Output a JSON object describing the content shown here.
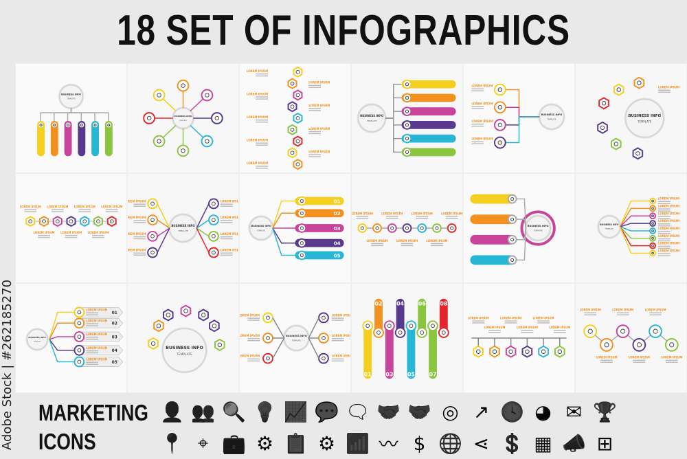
{
  "title": "18 SET OF INFOGRAPHICS",
  "watermark": "Adobe Stock | #262185270",
  "marketing": {
    "line1": "MARKETING",
    "line2": "ICONS"
  },
  "infographic_text": {
    "center_title": "BUSINESS INFO",
    "center_sub": "TEMPLATE",
    "label": "LOREM IPSUM"
  },
  "numbers5": [
    "01",
    "02",
    "03",
    "04",
    "05"
  ],
  "numbers8": [
    "01",
    "02",
    "03",
    "04",
    "05",
    "06",
    "07",
    "08"
  ],
  "colors": {
    "yellow": "#f5cf1f",
    "orange": "#f39120",
    "magenta": "#c8449b",
    "purple": "#573a8e",
    "cyan": "#27b6d3",
    "green": "#8bc43e",
    "red": "#e2262b"
  },
  "panels": [
    "pillars",
    "radial",
    "vertical-hex-chain",
    "left-circle-pills",
    "right-circle-branches",
    "hex-arc",
    "hex-row",
    "center-circle-sides",
    "numbered-pills",
    "horizontal-chain",
    "pills-ring",
    "circle-lines",
    "numbered-arrows",
    "hex-arc-top",
    "center-circle-nodes",
    "wave-pills",
    "timeline-hex",
    "wave-circles"
  ],
  "icons": [
    {
      "name": "user-icon",
      "glyph": "👤"
    },
    {
      "name": "team-icon",
      "glyph": "👥"
    },
    {
      "name": "search-icon",
      "glyph": "🔍"
    },
    {
      "name": "lightbulb-icon",
      "glyph": "💡"
    },
    {
      "name": "presentation-chart-icon",
      "glyph": "📈"
    },
    {
      "name": "chat-bubbles-icon",
      "glyph": "💬"
    },
    {
      "name": "chat-outline-icon",
      "glyph": "🗨"
    },
    {
      "name": "handshake-icon",
      "glyph": "🤝"
    },
    {
      "name": "handshake-outline-icon",
      "glyph": "🤝"
    },
    {
      "name": "target-icon",
      "glyph": "◎"
    },
    {
      "name": "growth-arrow-icon",
      "glyph": "↗"
    },
    {
      "name": "clock-icon",
      "glyph": "🕓"
    },
    {
      "name": "pie-chart-icon",
      "glyph": "◕"
    },
    {
      "name": "mail-icon",
      "glyph": "✉"
    },
    {
      "name": "trophy-icon",
      "glyph": "🏆"
    },
    {
      "name": "map-pin-icon",
      "glyph": "📍"
    },
    {
      "name": "location-icon",
      "glyph": "⌖"
    },
    {
      "name": "briefcase-icon",
      "glyph": "💼"
    },
    {
      "name": "gear-hand-icon",
      "glyph": "⚙"
    },
    {
      "name": "checklist-icon",
      "glyph": "📋"
    },
    {
      "name": "gears-icon",
      "glyph": "⚙"
    },
    {
      "name": "bar-chart-icon",
      "glyph": "📶"
    },
    {
      "name": "zigzag-icon",
      "glyph": "〰"
    },
    {
      "name": "dollar-icon",
      "glyph": "$"
    },
    {
      "name": "globe-icon",
      "glyph": "🌐"
    },
    {
      "name": "share-icon",
      "glyph": "⋖"
    },
    {
      "name": "money-hands-icon",
      "glyph": "💲"
    },
    {
      "name": "graph-icon",
      "glyph": "▦"
    },
    {
      "name": "megaphone-icon",
      "glyph": "📣"
    },
    {
      "name": "org-chart-icon",
      "glyph": "⊞"
    }
  ]
}
